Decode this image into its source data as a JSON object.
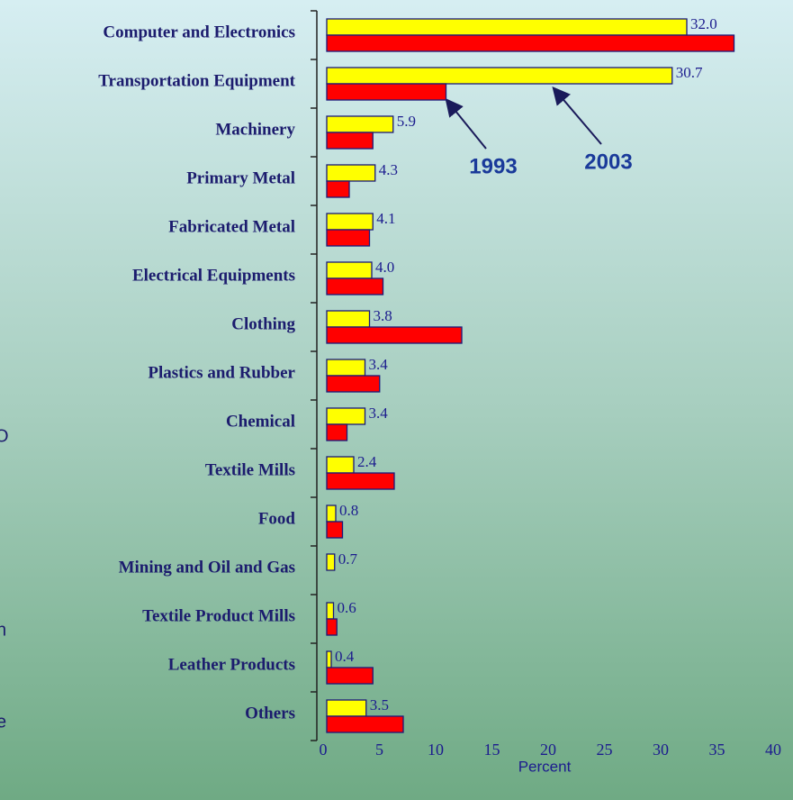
{
  "chart_data": {
    "type": "hbar",
    "categories": [
      "Computer and Electronics",
      "Transportation Equipment",
      "Machinery",
      "Primary Metal",
      "Fabricated Metal",
      "Electrical Equipments",
      "Clothing",
      "Plastics and Rubber",
      "Chemical",
      "Textile Mills",
      "Food",
      "Mining and Oil and Gas",
      "Textile Product Mills",
      "Leather Products",
      "Others"
    ],
    "series": [
      {
        "name": "2003",
        "color": "#ffff00",
        "values": [
          32.0,
          30.7,
          5.9,
          4.3,
          4.1,
          4.0,
          3.8,
          3.4,
          3.4,
          2.4,
          0.8,
          0.7,
          0.6,
          0.4,
          3.5
        ],
        "value_labels": [
          "32.0",
          "30.7",
          "5.9",
          "4.3",
          "4.1",
          "4.0",
          "3.8",
          "3.4",
          "3.4",
          "2.4",
          "0.8",
          "0.7",
          "0.6",
          "0.4",
          "3.5"
        ]
      },
      {
        "name": "1993",
        "color": "#ff0000",
        "values": [
          36.2,
          10.6,
          4.1,
          2.0,
          3.8,
          5.0,
          12.0,
          4.7,
          1.8,
          6.0,
          1.4,
          0,
          0.9,
          4.1,
          6.8
        ]
      }
    ],
    "xlabel": "Percent",
    "xlim": [
      0,
      40
    ],
    "xticks": [
      0,
      5,
      10,
      15,
      20,
      25,
      30,
      35,
      40
    ]
  },
  "side_text": [
    "O",
    "n",
    "e"
  ]
}
